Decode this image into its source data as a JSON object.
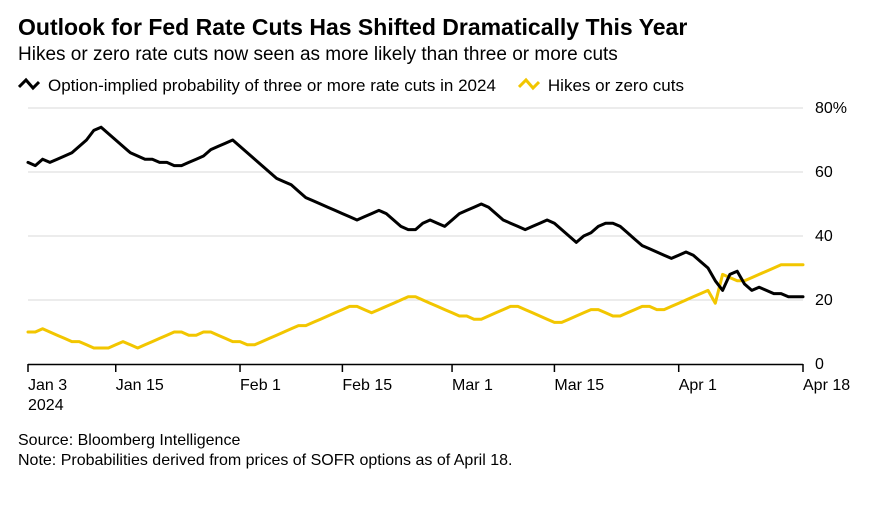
{
  "title": "Outlook for Fed Rate Cuts Has Shifted Dramatically This Year",
  "subtitle": "Hikes or zero rate cuts now seen as more likely than three or more cuts",
  "legend": {
    "series_a": "Option-implied probability of three or more rate cuts in 2024",
    "series_b": "Hikes or zero cuts"
  },
  "source": "Source: Bloomberg Intelligence",
  "note": "Note: Probabilities derived from prices of SOFR options as of April 18.",
  "chart": {
    "type": "line",
    "background_color": "#ffffff",
    "grid_color": "#d9d9d9",
    "axis_color": "#000000",
    "tick_label_fontsize": 16,
    "y": {
      "min": 0,
      "max": 80,
      "ticks": [
        0,
        20,
        40,
        60,
        80
      ],
      "tick_labels": [
        "0",
        "20",
        "40",
        "60",
        "80%"
      ]
    },
    "x": {
      "domain_start": 0,
      "domain_end": 106,
      "ticks": [
        0,
        12,
        29,
        43,
        58,
        72,
        89,
        106
      ],
      "tick_labels": [
        "Jan 3",
        "Jan 15",
        "Feb 1",
        "Feb 15",
        "Mar 1",
        "Mar 15",
        "Apr 1",
        "Apr 18"
      ],
      "second_line_at_first_tick": "2024"
    },
    "series": {
      "a_three_or_more_cuts": {
        "color": "#000000",
        "line_width": 3,
        "values": [
          63,
          62,
          64,
          63,
          64,
          65,
          66,
          68,
          70,
          73,
          74,
          72,
          70,
          68,
          66,
          65,
          64,
          64,
          63,
          63,
          62,
          62,
          63,
          64,
          65,
          67,
          68,
          69,
          70,
          68,
          66,
          64,
          62,
          60,
          58,
          57,
          56,
          54,
          52,
          51,
          50,
          49,
          48,
          47,
          46,
          45,
          46,
          47,
          48,
          47,
          45,
          43,
          42,
          42,
          44,
          45,
          44,
          43,
          45,
          47,
          48,
          49,
          50,
          49,
          47,
          45,
          44,
          43,
          42,
          43,
          44,
          45,
          44,
          42,
          40,
          38,
          40,
          41,
          43,
          44,
          44,
          43,
          41,
          39,
          37,
          36,
          35,
          34,
          33,
          34,
          35,
          34,
          32,
          30,
          26,
          23,
          28,
          29,
          25,
          23,
          24,
          23,
          22,
          22,
          21,
          21,
          21
        ]
      },
      "b_hikes_or_zero": {
        "color": "#f2c600",
        "line_width": 3,
        "values": [
          10,
          10,
          11,
          10,
          9,
          8,
          7,
          7,
          6,
          5,
          5,
          5,
          6,
          7,
          6,
          5,
          6,
          7,
          8,
          9,
          10,
          10,
          9,
          9,
          10,
          10,
          9,
          8,
          7,
          7,
          6,
          6,
          7,
          8,
          9,
          10,
          11,
          12,
          12,
          13,
          14,
          15,
          16,
          17,
          18,
          18,
          17,
          16,
          17,
          18,
          19,
          20,
          21,
          21,
          20,
          19,
          18,
          17,
          16,
          15,
          15,
          14,
          14,
          15,
          16,
          17,
          18,
          18,
          17,
          16,
          15,
          14,
          13,
          13,
          14,
          15,
          16,
          17,
          17,
          16,
          15,
          15,
          16,
          17,
          18,
          18,
          17,
          17,
          18,
          19,
          20,
          21,
          22,
          23,
          19,
          28,
          27,
          26,
          26,
          27,
          28,
          29,
          30,
          31,
          31,
          31,
          31
        ]
      }
    }
  }
}
